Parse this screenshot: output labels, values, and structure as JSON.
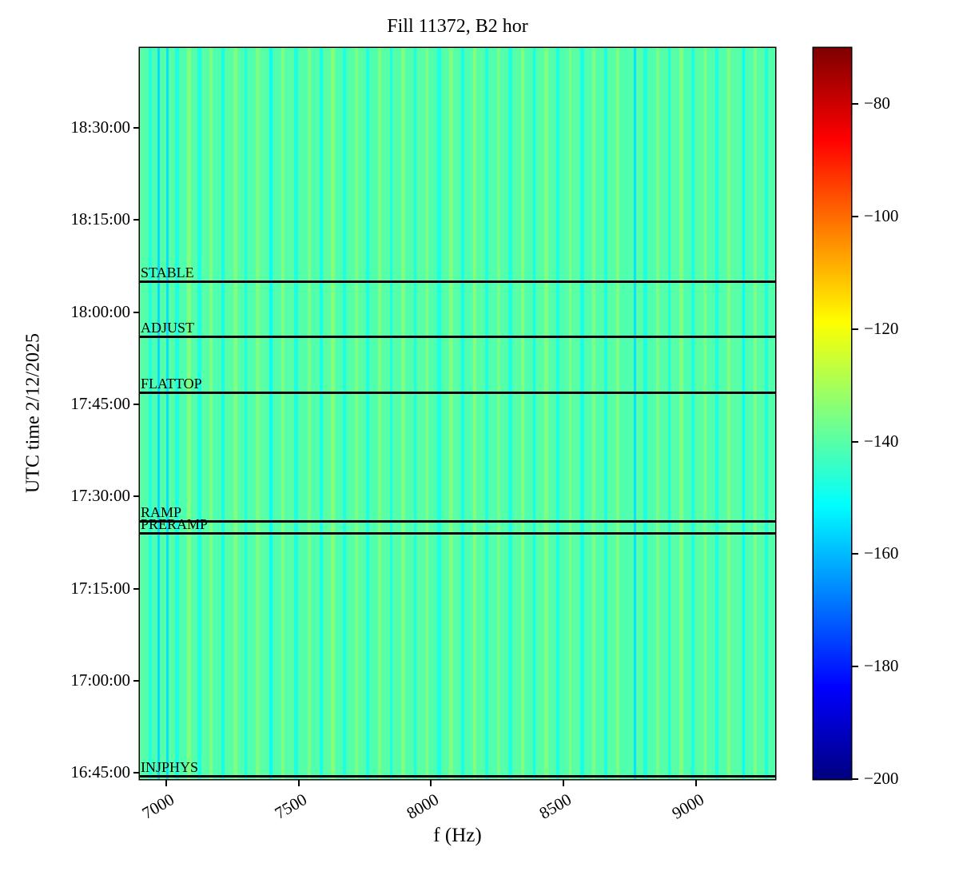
{
  "chart_data": {
    "type": "heatmap",
    "title": "Fill 11372, B2 hor",
    "xlabel": "f (Hz)",
    "ylabel": "UTC time 2/12/2025",
    "x_range": [
      6900,
      9300
    ],
    "x_ticks": [
      7000,
      7500,
      8000,
      8500,
      9000
    ],
    "y_time_start": "16:44:00",
    "y_time_end": "18:43:00",
    "y_ticks": [
      "16:45:00",
      "17:00:00",
      "17:15:00",
      "17:30:00",
      "17:45:00",
      "18:00:00",
      "18:15:00",
      "18:30:00"
    ],
    "colorbar": {
      "colormap": "jet",
      "vmin": -200,
      "vmax": -70,
      "ticks": [
        -80,
        -100,
        -120,
        -140,
        -160,
        -180,
        -200
      ]
    },
    "background_value_db": -140.5,
    "texture_noise_db": 1.3,
    "stripes_f_w_db": [
      [
        6940,
        12,
        -147
      ],
      [
        6972,
        9,
        -156
      ],
      [
        7005,
        9,
        -155
      ],
      [
        7040,
        16,
        -147.5
      ],
      [
        7085,
        16,
        -134.5
      ],
      [
        7125,
        14,
        -148
      ],
      [
        7170,
        12,
        -135
      ],
      [
        7215,
        12,
        -148.5
      ],
      [
        7262,
        14,
        -134
      ],
      [
        7300,
        10,
        -148
      ],
      [
        7345,
        16,
        -135
      ],
      [
        7395,
        10,
        -151
      ],
      [
        7440,
        14,
        -134.5
      ],
      [
        7490,
        16,
        -148
      ],
      [
        7540,
        12,
        -135
      ],
      [
        7585,
        10,
        -148.5
      ],
      [
        7630,
        14,
        -134
      ],
      [
        7672,
        12,
        -148
      ],
      [
        7718,
        10,
        -135.5
      ],
      [
        7760,
        14,
        -148
      ],
      [
        7805,
        12,
        -134.5
      ],
      [
        7850,
        10,
        -148.5
      ],
      [
        7895,
        14,
        -135
      ],
      [
        7940,
        12,
        -148
      ],
      [
        7985,
        10,
        -134.5
      ],
      [
        8030,
        14,
        -148
      ],
      [
        8075,
        16,
        -135
      ],
      [
        8120,
        10,
        -148.5
      ],
      [
        8165,
        14,
        -134
      ],
      [
        8210,
        12,
        -148
      ],
      [
        8255,
        10,
        -135.5
      ],
      [
        8300,
        14,
        -148
      ],
      [
        8345,
        12,
        -134.5
      ],
      [
        8390,
        10,
        -149
      ],
      [
        8435,
        14,
        -135
      ],
      [
        8480,
        12,
        -148
      ],
      [
        8525,
        10,
        -134.5
      ],
      [
        8570,
        14,
        -148.5
      ],
      [
        8615,
        12,
        -135
      ],
      [
        8660,
        10,
        -148
      ],
      [
        8705,
        12,
        -134.5
      ],
      [
        8770,
        9,
        -155
      ],
      [
        8810,
        14,
        -148
      ],
      [
        8855,
        12,
        -135
      ],
      [
        8900,
        10,
        -148.5
      ],
      [
        8945,
        14,
        -134.5
      ],
      [
        8990,
        12,
        -148
      ],
      [
        9035,
        10,
        -135
      ],
      [
        9080,
        14,
        -148
      ],
      [
        9125,
        12,
        -134.5
      ],
      [
        9180,
        10,
        -151
      ],
      [
        9225,
        14,
        -135
      ],
      [
        9268,
        12,
        -148
      ]
    ],
    "beam_modes": [
      {
        "label": "STABLE",
        "time": "18:05:00"
      },
      {
        "label": "ADJUST",
        "time": "17:56:00"
      },
      {
        "label": "FLATTOP",
        "time": "17:47:00"
      },
      {
        "label": "RAMP",
        "time": "17:26:00"
      },
      {
        "label": "PRERAMP",
        "time": "17:24:00"
      },
      {
        "label": "INJPHYS",
        "time": "16:44:30"
      }
    ]
  }
}
